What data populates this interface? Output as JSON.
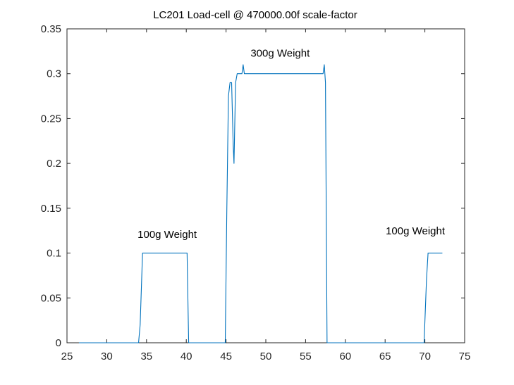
{
  "chart_data": {
    "type": "line",
    "title": "LC201 Load-cell @ 470000.00f scale-factor",
    "xlabel": "",
    "ylabel": "",
    "xlim": [
      25,
      75
    ],
    "ylim": [
      0,
      0.35
    ],
    "xticks": [
      25,
      30,
      35,
      40,
      45,
      50,
      55,
      60,
      65,
      70,
      75
    ],
    "xtick_labels": [
      "25",
      "30",
      "35",
      "40",
      "45",
      "50",
      "55",
      "60",
      "65",
      "70",
      "75"
    ],
    "yticks": [
      0,
      0.05,
      0.1,
      0.15,
      0.2,
      0.25,
      0.3,
      0.35
    ],
    "ytick_labels": [
      "0",
      "0.05",
      "0.1",
      "0.15",
      "0.2",
      "0.25",
      "0.3",
      "0.35"
    ],
    "grid": false,
    "legend": "none",
    "series": [
      {
        "color": "#0072BD",
        "x": [
          26.5,
          34.0,
          34.2,
          34.5,
          40.1,
          40.3,
          44.9,
          45.1,
          45.3,
          45.5,
          45.7,
          45.9,
          46.0,
          46.2,
          46.4,
          47.0,
          47.15,
          47.3,
          57.2,
          57.35,
          57.5,
          57.7,
          69.9,
          70.2,
          70.4,
          72.2
        ],
        "y": [
          0,
          0,
          0.02,
          0.1,
          0.1,
          0,
          0,
          0.15,
          0.275,
          0.29,
          0.29,
          0.22,
          0.2,
          0.29,
          0.3,
          0.3,
          0.31,
          0.3,
          0.3,
          0.31,
          0.29,
          0,
          0,
          0.07,
          0.1,
          0.1
        ]
      }
    ],
    "annotations": [
      {
        "text": "100g Weight",
        "x": 37.6,
        "y": 0.117
      },
      {
        "text": "300g Weight",
        "x": 51.8,
        "y": 0.319
      },
      {
        "text": "100g Weight",
        "x": 68.8,
        "y": 0.121
      }
    ]
  }
}
